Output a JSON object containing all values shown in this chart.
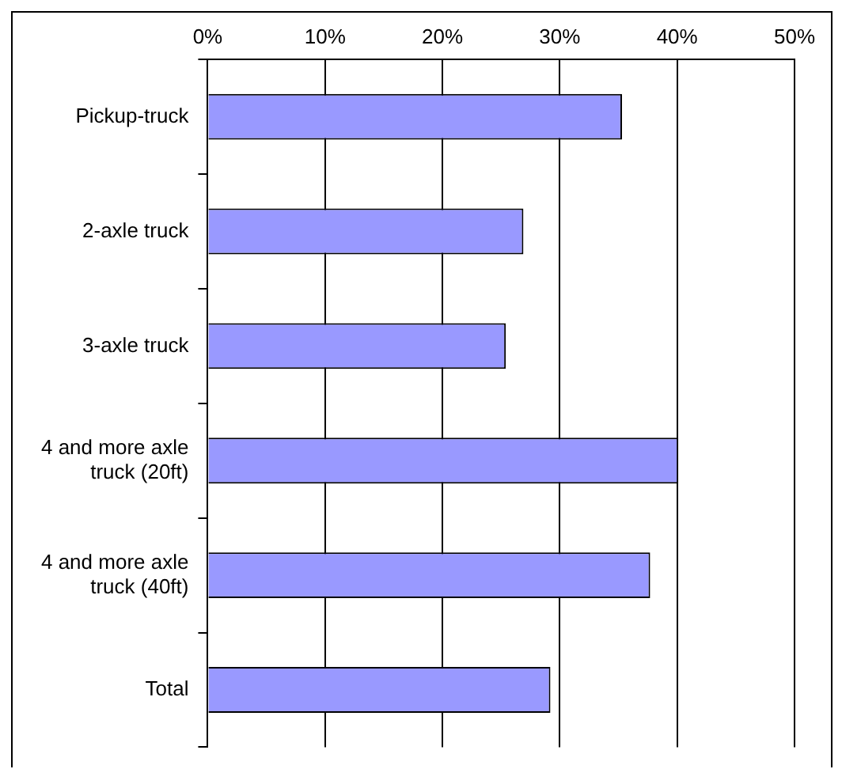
{
  "chart_data": {
    "type": "bar",
    "orientation": "horizontal",
    "categories": [
      "Pickup-truck",
      "2-axle truck",
      "3-axle truck",
      "4 and more axle truck (20ft)",
      "4 and more axle truck (40ft)",
      "Total"
    ],
    "values": [
      35.3,
      26.9,
      25.4,
      40.1,
      37.7,
      29.2
    ],
    "color": "#9999ff",
    "xlim": [
      0,
      50
    ],
    "xticks": [
      {
        "value": 0,
        "label": "0%"
      },
      {
        "value": 10,
        "label": "10%"
      },
      {
        "value": 20,
        "label": "20%"
      },
      {
        "value": 30,
        "label": "30%"
      },
      {
        "value": 40,
        "label": "40%"
      },
      {
        "value": 50,
        "label": "50%"
      }
    ],
    "grid": "x",
    "legend": false
  }
}
